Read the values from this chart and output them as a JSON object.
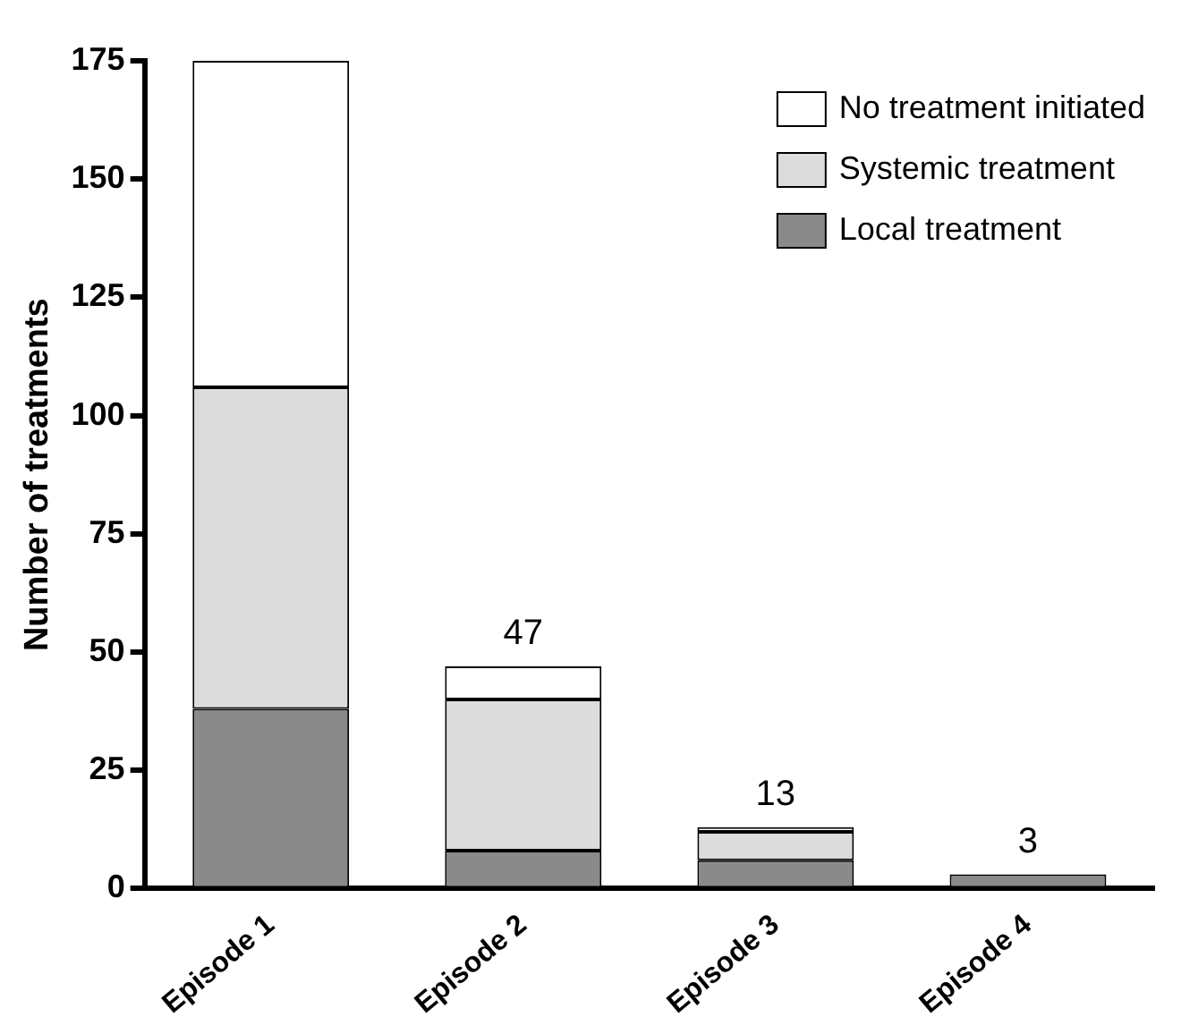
{
  "chart_data": {
    "type": "bar",
    "stacked": true,
    "ylabel": "Number of treatments",
    "categories": [
      "Episode 1",
      "Episode 2",
      "Episode 3",
      "Episode 4"
    ],
    "series": [
      {
        "name": "Local treatment",
        "color": "#8a8a8a",
        "values": [
          38,
          8,
          6,
          3
        ]
      },
      {
        "name": "Systemic treatment",
        "color": "#dcdcdc",
        "values": [
          68,
          32,
          6,
          0
        ]
      },
      {
        "name": "No treatment initiated",
        "color": "#ffffff",
        "values": [
          69,
          7,
          1,
          0
        ]
      }
    ],
    "ylim": [
      0,
      175
    ],
    "yticks": [
      0,
      25,
      50,
      75,
      100,
      125,
      150,
      175
    ],
    "totals": [
      null,
      "47",
      "13",
      "3"
    ],
    "grid": false,
    "legend": "top right"
  }
}
